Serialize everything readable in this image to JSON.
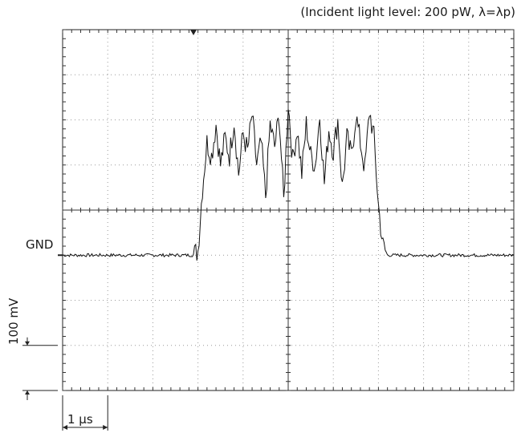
{
  "annotation": "(Incident light level: 200 pW, λ=λp)",
  "gnd_label": "GND",
  "vertical_scale_label": "100 mV",
  "horizontal_scale_label": "1 μs",
  "chart_data": {
    "type": "line",
    "title": "",
    "xlabel": "",
    "ylabel": "",
    "x_unit": "div",
    "y_unit": "div",
    "xlim": [
      0,
      10
    ],
    "ylim": [
      -4,
      4
    ],
    "vertical_scale": "100 mV/div",
    "horizontal_scale": "1 μs/div",
    "gnd_level_div": -1,
    "grid": true,
    "series": [
      {
        "x": [
          0,
          1,
          2,
          2.9,
          3.0,
          3.1,
          3.2,
          3.3,
          3.4,
          3.5,
          3.6,
          3.7,
          3.8,
          3.9,
          4.0,
          4.1,
          4.2,
          4.3,
          4.4,
          4.5,
          4.6,
          4.7,
          4.8,
          4.9,
          5.0,
          5.1,
          5.2,
          5.3,
          5.4,
          5.5,
          5.6,
          5.7,
          5.8,
          5.9,
          6.0,
          6.1,
          6.2,
          6.3,
          6.4,
          6.5,
          6.6,
          6.7,
          6.8,
          6.9,
          7.0,
          7.1,
          7.2,
          8,
          9,
          10
        ],
        "y": [
          -1,
          -1,
          -1,
          -1,
          -0.9,
          0.5,
          1.5,
          1.2,
          1.9,
          1.0,
          1.6,
          1.2,
          2.0,
          0.8,
          1.7,
          1.3,
          2.1,
          1.0,
          1.5,
          0.3,
          1.9,
          1.4,
          2.1,
          0.2,
          2.4,
          1.1,
          1.8,
          0.8,
          1.9,
          1.2,
          1.0,
          2.1,
          0.6,
          1.8,
          1.3,
          2.0,
          0.5,
          1.6,
          1.2,
          2.1,
          1.5,
          0.9,
          2.2,
          1.6,
          0.1,
          -0.8,
          -1,
          -1,
          -1,
          -1
        ]
      }
    ]
  }
}
